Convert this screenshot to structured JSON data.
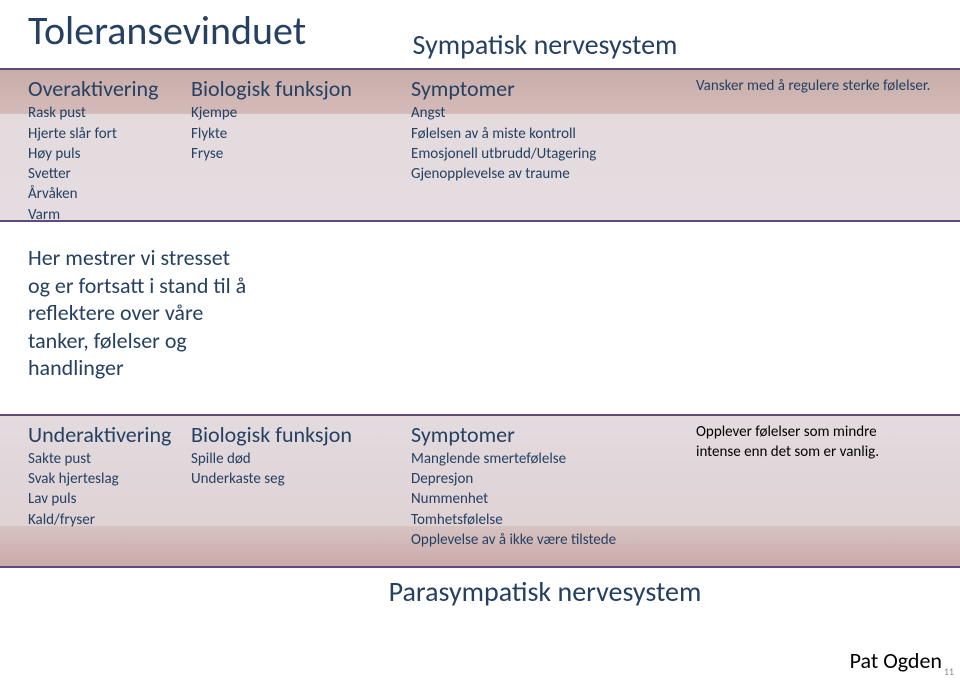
{
  "colors": {
    "heading": "#254061",
    "band_border": "#604a7b",
    "over_wash": "#e4dadd",
    "under_wash": "#e3dbdf",
    "over_strip": "#c3a5a1",
    "under_strip": "#c5a4a1",
    "background": "#ffffff"
  },
  "typography": {
    "title_size": 40,
    "section_size": 28,
    "col_head_size": 22,
    "body_size": 15,
    "middle_size": 22,
    "footer_size": 22
  },
  "title": "Toleransevinduet",
  "top_section": "Sympatisk nervesystem",
  "bottom_section": "Parasympatisk nervesystem",
  "over": {
    "col1_head": "Overaktivering",
    "col1_lines": [
      "Rask pust",
      "Hjerte slår fort",
      "Høy puls",
      "Svetter",
      "Årvåken",
      "Varm"
    ],
    "col2_head": "Biologisk funksjon",
    "col2_lines": [
      "Kjempe",
      "Flykte",
      "Fryse"
    ],
    "col3_head": "Symptomer",
    "col3_lines": [
      "Angst",
      "Følelsen av å miste kontroll",
      "Emosjonell utbrudd/Utagering",
      "Gjenopplevelse av traume"
    ],
    "col4_note": "Vansker med å regulere sterke følelser."
  },
  "middle": {
    "l1": "Her mestrer vi stresset",
    "l2": "og er fortsatt i stand til å",
    "l3": "reflektere over våre",
    "l4": "tanker, følelser og",
    "l5": "handlinger"
  },
  "under": {
    "col1_head": "Underaktivering",
    "col1_lines": [
      "Sakte pust",
      "Svak hjerteslag",
      "Lav puls",
      "Kald/fryser"
    ],
    "col2_head": "Biologisk funksjon",
    "col2_lines": [
      "Spille død",
      "Underkaste seg"
    ],
    "col3_head": "Symptomer",
    "col3_lines": [
      "Manglende smertefølelse",
      "Depresjon",
      "Nummenhet",
      "Tomhetsfølelse",
      "Opplevelse av å ikke være tilstede"
    ],
    "col4_note_l1": "Opplever følelser som mindre",
    "col4_note_l2": "intense enn det som er vanlig."
  },
  "footer": "Pat Ogden",
  "page_num": "11"
}
